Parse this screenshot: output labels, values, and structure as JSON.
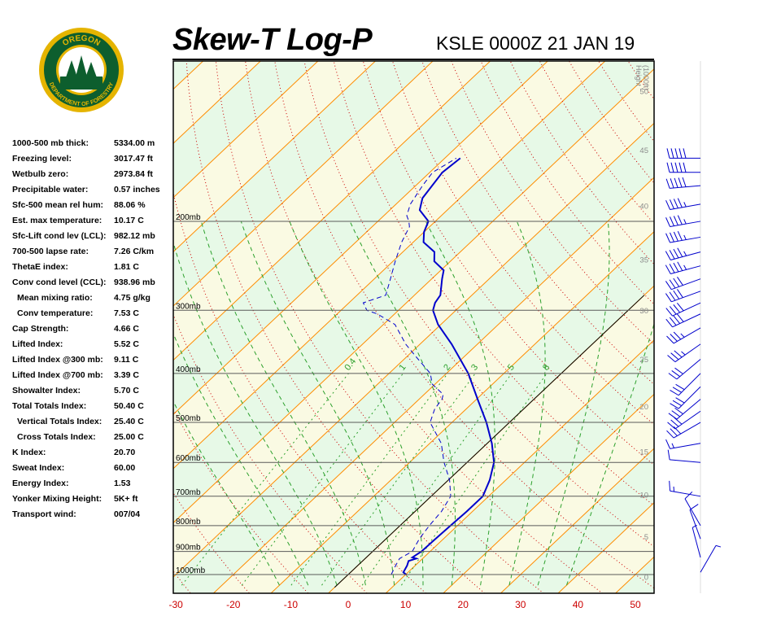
{
  "header": {
    "title": "Skew-T Log-P",
    "station": "KSLE 0000Z 21 JAN 19"
  },
  "logo": {
    "top_text": "OREGON",
    "ring_text": "DEPARTMENT OF FORESTRY"
  },
  "stats": [
    {
      "label": "1000-500 mb thick:",
      "value": "5334.00 m",
      "indent": false
    },
    {
      "label": "Freezing level:",
      "value": "3017.47 ft",
      "indent": false
    },
    {
      "label": "Wetbulb zero:",
      "value": "2973.84 ft",
      "indent": false
    },
    {
      "label": "Precipitable water:",
      "value": "0.57 inches",
      "indent": false
    },
    {
      "label": "Sfc-500 mean rel hum:",
      "value": "88.06 %",
      "indent": false
    },
    {
      "label": "Est. max temperature:",
      "value": "10.17 C",
      "indent": false
    },
    {
      "label": "Sfc-Lift cond lev (LCL):",
      "value": "982.12 mb",
      "indent": false
    },
    {
      "label": "700-500 lapse rate:",
      "value": "7.26 C/km",
      "indent": false
    },
    {
      "label": "ThetaE index:",
      "value": "1.81 C",
      "indent": false
    },
    {
      "label": "Conv cond level (CCL):",
      "value": "938.96 mb",
      "indent": false
    },
    {
      "label": "Mean mixing ratio:",
      "value": "4.75 g/kg",
      "indent": true
    },
    {
      "label": "Conv temperature:",
      "value": "7.53 C",
      "indent": true
    },
    {
      "label": "Cap Strength:",
      "value": "4.66 C",
      "indent": false
    },
    {
      "label": "Lifted Index:",
      "value": "5.52 C",
      "indent": false
    },
    {
      "label": "Lifted Index @300 mb:",
      "value": "9.11 C",
      "indent": false
    },
    {
      "label": "Lifted Index @700 mb:",
      "value": "3.39 C",
      "indent": false
    },
    {
      "label": "Showalter Index:",
      "value": "5.70 C",
      "indent": false
    },
    {
      "label": "Total Totals Index:",
      "value": "50.40 C",
      "indent": false
    },
    {
      "label": "Vertical Totals Index:",
      "value": "25.40 C",
      "indent": true
    },
    {
      "label": "Cross Totals Index:",
      "value": "25.00 C",
      "indent": true
    },
    {
      "label": "K Index:",
      "value": "20.70",
      "indent": false
    },
    {
      "label": "Sweat Index:",
      "value": "60.00",
      "indent": false
    },
    {
      "label": "Energy Index:",
      "value": "1.53",
      "indent": false
    },
    {
      "label": "Yonker Mixing Height:",
      "value": "5K+ ft",
      "indent": false
    },
    {
      "label": "Transport wind:",
      "value": "007/04",
      "indent": false
    }
  ],
  "chart_data": {
    "type": "line",
    "title": "Skew-T Log-P",
    "xlabel": "",
    "ylabel": "",
    "x_ticks": [
      -30,
      -20,
      -10,
      0,
      10,
      20,
      30,
      40,
      50
    ],
    "xlim": [
      -30,
      50
    ],
    "pressure_levels": [
      {
        "p": 200,
        "label": "200mb"
      },
      {
        "p": 300,
        "label": "300mb"
      },
      {
        "p": 400,
        "label": "400mb"
      },
      {
        "p": 500,
        "label": "500mb"
      },
      {
        "p": 600,
        "label": "600mb"
      },
      {
        "p": 700,
        "label": "700mb"
      },
      {
        "p": 800,
        "label": "800mb"
      },
      {
        "p": 900,
        "label": "900mb"
      },
      {
        "p": 1000,
        "label": "1000mb"
      }
    ],
    "height_axis": {
      "title_lines": [
        "Height",
        "(1000ft)"
      ],
      "ticks": [
        0,
        5,
        10,
        15,
        20,
        25,
        30,
        35,
        40,
        45,
        50
      ]
    },
    "mixing_ratio_labels": [
      "0.4",
      "1",
      "2",
      "3",
      "5",
      "8"
    ],
    "colors": {
      "temperature": "#0000cc",
      "dewpoint": "#0000cc",
      "isotherm": "#ff8c00",
      "dry_adiabat": "#cc0000",
      "moist_adiabat": "#2ca02c",
      "mixing_ratio": "#2ca02c",
      "band_a": "#e7f9e7",
      "band_b": "#fafae3",
      "wind_barb": "#0000cc"
    },
    "series": [
      {
        "name": "Temperature",
        "points": [
          [
            1000,
            10.1
          ],
          [
            990,
            9.2
          ],
          [
            960,
            8.6
          ],
          [
            940,
            8.0
          ],
          [
            930,
            8.9
          ],
          [
            925,
            8.0
          ],
          [
            900,
            8.5
          ],
          [
            850,
            8.6
          ],
          [
            800,
            8.8
          ],
          [
            750,
            9.0
          ],
          [
            700,
            9.0
          ],
          [
            650,
            7.2
          ],
          [
            600,
            4.7
          ],
          [
            550,
            0.8
          ],
          [
            500,
            -4.0
          ],
          [
            450,
            -9.8
          ],
          [
            400,
            -16.2
          ],
          [
            350,
            -24.5
          ],
          [
            320,
            -30.5
          ],
          [
            300,
            -34.0
          ],
          [
            290,
            -35.0
          ],
          [
            280,
            -35.5
          ],
          [
            260,
            -38.2
          ],
          [
            250,
            -39.5
          ],
          [
            240,
            -42.8
          ],
          [
            230,
            -44.5
          ],
          [
            220,
            -48.2
          ],
          [
            210,
            -50.0
          ],
          [
            200,
            -51.2
          ],
          [
            190,
            -54.8
          ],
          [
            180,
            -56.5
          ],
          [
            160,
            -57.8
          ],
          [
            150,
            -57.3
          ]
        ]
      },
      {
        "name": "Dewpoint",
        "points": [
          [
            1000,
            7.5
          ],
          [
            960,
            6.6
          ],
          [
            930,
            6.0
          ],
          [
            900,
            6.9
          ],
          [
            850,
            5.8
          ],
          [
            800,
            5.1
          ],
          [
            750,
            4.6
          ],
          [
            700,
            3.4
          ],
          [
            650,
            0.2
          ],
          [
            600,
            -4.0
          ],
          [
            550,
            -8.0
          ],
          [
            500,
            -13.8
          ],
          [
            470,
            -15.5
          ],
          [
            450,
            -16.0
          ],
          [
            440,
            -16.7
          ],
          [
            420,
            -20.5
          ],
          [
            400,
            -22.8
          ],
          [
            370,
            -28.5
          ],
          [
            350,
            -32.5
          ],
          [
            320,
            -38.0
          ],
          [
            305,
            -43.0
          ],
          [
            300,
            -45.5
          ],
          [
            290,
            -47.5
          ],
          [
            280,
            -45.0
          ],
          [
            260,
            -47.2
          ],
          [
            240,
            -49.6
          ],
          [
            220,
            -52.0
          ],
          [
            205,
            -53.5
          ],
          [
            200,
            -54.6
          ],
          [
            195,
            -56.0
          ],
          [
            185,
            -57.5
          ],
          [
            170,
            -58.8
          ],
          [
            160,
            -59.5
          ],
          [
            150,
            -58.0
          ]
        ]
      }
    ],
    "wind_barbs": [
      {
        "p": 150,
        "dir": 270,
        "kt": 50
      },
      {
        "p": 160,
        "dir": 270,
        "kt": 50
      },
      {
        "p": 170,
        "dir": 265,
        "kt": 50
      },
      {
        "p": 185,
        "dir": 260,
        "kt": 45
      },
      {
        "p": 200,
        "dir": 260,
        "kt": 45
      },
      {
        "p": 215,
        "dir": 260,
        "kt": 45
      },
      {
        "p": 230,
        "dir": 255,
        "kt": 45
      },
      {
        "p": 245,
        "dir": 255,
        "kt": 45
      },
      {
        "p": 260,
        "dir": 250,
        "kt": 40
      },
      {
        "p": 275,
        "dir": 250,
        "kt": 40
      },
      {
        "p": 290,
        "dir": 245,
        "kt": 40
      },
      {
        "p": 305,
        "dir": 245,
        "kt": 40
      },
      {
        "p": 325,
        "dir": 240,
        "kt": 35
      },
      {
        "p": 350,
        "dir": 235,
        "kt": 35
      },
      {
        "p": 375,
        "dir": 230,
        "kt": 30
      },
      {
        "p": 400,
        "dir": 225,
        "kt": 30
      },
      {
        "p": 425,
        "dir": 225,
        "kt": 30
      },
      {
        "p": 450,
        "dir": 230,
        "kt": 30
      },
      {
        "p": 475,
        "dir": 235,
        "kt": 30
      },
      {
        "p": 500,
        "dir": 240,
        "kt": 30
      },
      {
        "p": 550,
        "dir": 260,
        "kt": 15
      },
      {
        "p": 600,
        "dir": 275,
        "kt": 10
      },
      {
        "p": 700,
        "dir": 280,
        "kt": 15
      },
      {
        "p": 800,
        "dir": 330,
        "kt": 10
      },
      {
        "p": 850,
        "dir": 340,
        "kt": 10
      },
      {
        "p": 925,
        "dir": 345,
        "kt": 5
      },
      {
        "p": 990,
        "dir": 30,
        "kt": 5
      }
    ]
  }
}
